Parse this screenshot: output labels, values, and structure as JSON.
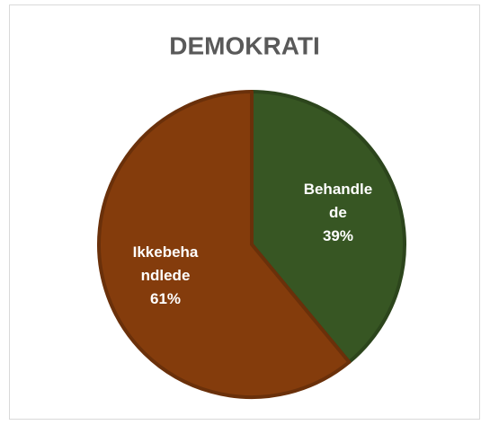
{
  "chart_data": {
    "type": "pie",
    "title": "DEMOKRATI",
    "categories": [
      "Behandlede",
      "Ikkebehandlede"
    ],
    "values": [
      39,
      61
    ],
    "value_labels": [
      "39%",
      "61%"
    ],
    "colors": [
      "#375623",
      "#843c0c"
    ]
  }
}
